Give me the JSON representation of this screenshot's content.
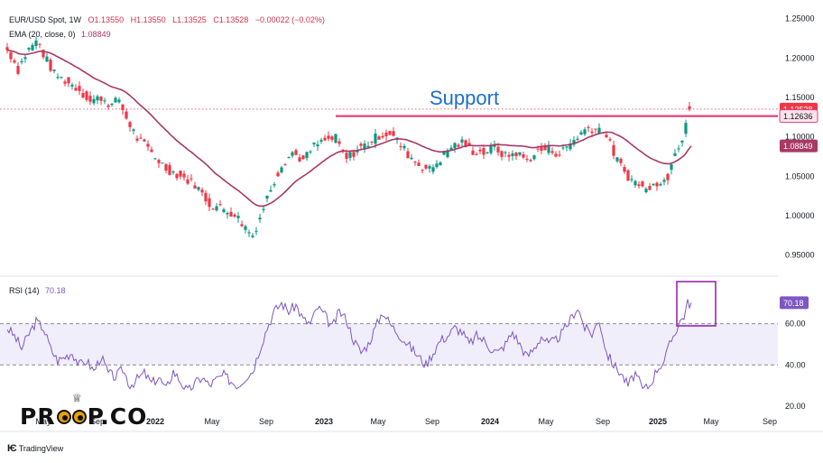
{
  "header": {
    "symbol": "EUR/USD Spot, 1W",
    "open": "O1.13550",
    "high": "H1.13550",
    "low": "L1.13525",
    "close": "C1.13528",
    "change": "−0.00022 (−0.02%)",
    "ema_label": "EMA (20, close, 0)",
    "ema_value": "1.08849"
  },
  "rsi_header": {
    "label": "RSI (14)",
    "value": "70.18"
  },
  "branding": {
    "watermark_left": "PR",
    "watermark_right": "P.CO",
    "tradingview": "TradingView"
  },
  "colors": {
    "up": "#089981",
    "down": "#f23645",
    "ema": "#a83865",
    "support": "#e0407a",
    "rsi": "#7e57c2",
    "rsi_band": "#f1eefb",
    "annotation": "#1e6fc9",
    "box": "#9c27b0"
  },
  "chart_data": [
    {
      "type": "candlestick",
      "title": "EUR/USD Spot, 1W",
      "x_ticks": [
        "May",
        "Sep",
        "2022",
        "May",
        "Sep",
        "2023",
        "May",
        "Sep",
        "2024",
        "May",
        "Sep",
        "2025",
        "May",
        "Sep"
      ],
      "y_ticks": [
        "0.95000",
        "1.00000",
        "1.05000",
        "1.10000",
        "1.15000",
        "1.20000",
        "1.25000"
      ],
      "ylim": [
        0.93,
        1.26
      ],
      "price_anchors": [
        [
          0,
          1.21
        ],
        [
          3,
          1.2
        ],
        [
          6,
          1.185
        ],
        [
          9,
          1.2
        ],
        [
          13,
          1.215
        ],
        [
          17,
          1.222
        ],
        [
          20,
          1.205
        ],
        [
          26,
          1.18
        ],
        [
          33,
          1.17
        ],
        [
          40,
          1.16
        ],
        [
          46,
          1.145
        ],
        [
          52,
          1.15
        ],
        [
          58,
          1.14
        ],
        [
          62,
          1.148
        ],
        [
          65,
          1.128
        ],
        [
          72,
          1.098
        ],
        [
          80,
          1.08
        ],
        [
          88,
          1.06
        ],
        [
          96,
          1.05
        ],
        [
          104,
          1.04
        ],
        [
          112,
          1.015
        ],
        [
          120,
          1.008
        ],
        [
          126,
          1.002
        ],
        [
          132,
          0.985
        ],
        [
          136,
          0.975
        ],
        [
          140,
          0.998
        ],
        [
          146,
          1.035
        ],
        [
          152,
          1.065
        ],
        [
          158,
          1.08
        ],
        [
          164,
          1.07
        ],
        [
          170,
          1.088
        ],
        [
          176,
          1.095
        ],
        [
          182,
          1.098
        ],
        [
          188,
          1.072
        ],
        [
          194,
          1.084
        ],
        [
          200,
          1.092
        ],
        [
          206,
          1.102
        ],
        [
          212,
          1.105
        ],
        [
          216,
          1.095
        ],
        [
          222,
          1.078
        ],
        [
          228,
          1.065
        ],
        [
          234,
          1.058
        ],
        [
          240,
          1.072
        ],
        [
          246,
          1.088
        ],
        [
          252,
          1.092
        ],
        [
          258,
          1.082
        ],
        [
          264,
          1.08
        ],
        [
          270,
          1.087
        ],
        [
          276,
          1.075
        ],
        [
          282,
          1.08
        ],
        [
          288,
          1.07
        ],
        [
          294,
          1.082
        ],
        [
          300,
          1.085
        ],
        [
          306,
          1.078
        ],
        [
          312,
          1.092
        ],
        [
          318,
          1.105
        ],
        [
          322,
          1.112
        ],
        [
          326,
          1.11
        ],
        [
          330,
          1.11
        ],
        [
          334,
          1.09
        ],
        [
          338,
          1.07
        ],
        [
          342,
          1.055
        ],
        [
          346,
          1.045
        ],
        [
          350,
          1.04
        ],
        [
          354,
          1.032
        ],
        [
          358,
          1.045
        ],
        [
          362,
          1.04
        ],
        [
          366,
          1.05
        ],
        [
          369,
          1.08
        ],
        [
          372,
          1.09
        ],
        [
          375,
          1.105
        ],
        [
          377,
          1.135
        ],
        [
          379,
          1.1353
        ]
      ],
      "ema": {
        "name": "EMA (20, close, 0)",
        "last_value": 1.08849
      },
      "support": {
        "label": "Support",
        "level": 1.12636
      },
      "price_labels": [
        "1.13528",
        "1.12636",
        "1.08849"
      ],
      "last_price": 1.13528
    },
    {
      "type": "line",
      "title": "RSI (14)",
      "y_ticks": [
        "20.00",
        "40.00",
        "60.00"
      ],
      "ylim": [
        20,
        80
      ],
      "band": [
        40,
        60
      ],
      "last_value": 70.18,
      "anchors": [
        [
          0,
          58
        ],
        [
          4,
          54
        ],
        [
          8,
          48
        ],
        [
          12,
          55
        ],
        [
          16,
          61
        ],
        [
          20,
          58
        ],
        [
          24,
          48
        ],
        [
          28,
          42
        ],
        [
          32,
          44
        ],
        [
          36,
          46
        ],
        [
          40,
          40
        ],
        [
          44,
          42
        ],
        [
          48,
          37
        ],
        [
          52,
          44
        ],
        [
          56,
          36
        ],
        [
          60,
          34
        ],
        [
          64,
          38
        ],
        [
          68,
          30
        ],
        [
          72,
          33
        ],
        [
          76,
          36
        ],
        [
          80,
          31
        ],
        [
          84,
          34
        ],
        [
          88,
          28
        ],
        [
          92,
          37
        ],
        [
          96,
          32
        ],
        [
          100,
          27
        ],
        [
          104,
          31
        ],
        [
          108,
          34
        ],
        [
          112,
          30
        ],
        [
          116,
          33
        ],
        [
          120,
          35
        ],
        [
          124,
          32
        ],
        [
          128,
          30
        ],
        [
          132,
          34
        ],
        [
          136,
          37
        ],
        [
          140,
          48
        ],
        [
          144,
          58
        ],
        [
          148,
          66
        ],
        [
          152,
          70
        ],
        [
          156,
          66
        ],
        [
          160,
          69
        ],
        [
          164,
          62
        ],
        [
          168,
          60
        ],
        [
          172,
          68
        ],
        [
          176,
          64
        ],
        [
          180,
          58
        ],
        [
          184,
          66
        ],
        [
          188,
          62
        ],
        [
          192,
          52
        ],
        [
          196,
          46
        ],
        [
          200,
          50
        ],
        [
          204,
          58
        ],
        [
          208,
          66
        ],
        [
          212,
          60
        ],
        [
          216,
          56
        ],
        [
          220,
          52
        ],
        [
          224,
          48
        ],
        [
          228,
          44
        ],
        [
          232,
          40
        ],
        [
          236,
          46
        ],
        [
          240,
          52
        ],
        [
          244,
          54
        ],
        [
          248,
          58
        ],
        [
          252,
          56
        ],
        [
          256,
          50
        ],
        [
          260,
          54
        ],
        [
          264,
          52
        ],
        [
          268,
          48
        ],
        [
          272,
          46
        ],
        [
          276,
          50
        ],
        [
          280,
          56
        ],
        [
          284,
          50
        ],
        [
          288,
          44
        ],
        [
          292,
          48
        ],
        [
          296,
          54
        ],
        [
          300,
          50
        ],
        [
          304,
          52
        ],
        [
          308,
          56
        ],
        [
          312,
          62
        ],
        [
          316,
          68
        ],
        [
          320,
          58
        ],
        [
          324,
          55
        ],
        [
          328,
          62
        ],
        [
          332,
          46
        ],
        [
          336,
          40
        ],
        [
          340,
          36
        ],
        [
          344,
          30
        ],
        [
          348,
          36
        ],
        [
          352,
          28
        ],
        [
          356,
          30
        ],
        [
          360,
          38
        ],
        [
          364,
          42
        ],
        [
          368,
          52
        ],
        [
          372,
          60
        ],
        [
          375,
          64
        ],
        [
          377,
          70
        ],
        [
          379,
          70.18
        ]
      ]
    }
  ]
}
